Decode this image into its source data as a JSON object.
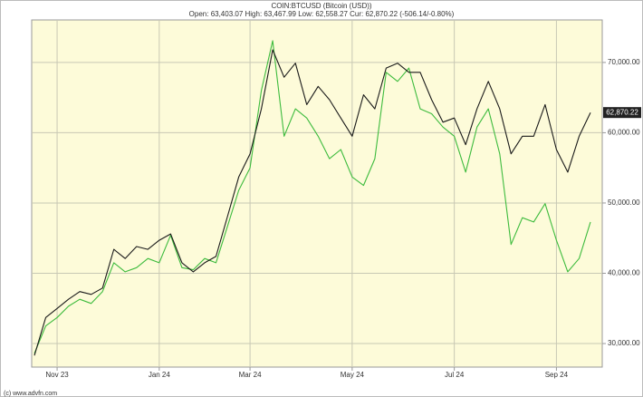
{
  "chart_data": {
    "type": "line",
    "title": "COIN:BTCUSD (Bitcoin (USD))",
    "subtitle": "Open: 63,403.07 High: 63,467.99 Low: 62,558.27 Cur: 62,870.22 (-506.14/-0.80%)",
    "footer": "(c) www.advfn.com",
    "categories": [
      null,
      null,
      "Nov 23",
      null,
      null,
      null,
      null,
      null,
      null,
      null,
      null,
      "Jan 24",
      null,
      null,
      null,
      null,
      null,
      null,
      null,
      "Mar 24",
      null,
      null,
      null,
      null,
      null,
      null,
      null,
      null,
      "May 24",
      null,
      null,
      null,
      null,
      null,
      null,
      null,
      null,
      "Jul 24",
      null,
      null,
      null,
      null,
      null,
      null,
      null,
      null,
      "Sep 24",
      null,
      null,
      null
    ],
    "series": [
      {
        "color": "#1a1a1a",
        "values": [
          28300,
          33700,
          35000,
          36300,
          37400,
          37000,
          37900,
          43400,
          42100,
          43800,
          43400,
          44700,
          45600,
          41500,
          40200,
          41500,
          42400,
          48000,
          53700,
          57000,
          63400,
          71800,
          67900,
          69900,
          64000,
          66600,
          64700,
          62100,
          59500,
          65400,
          63400,
          69200,
          69900,
          68600,
          68600,
          64700,
          61500,
          62100,
          58300,
          63400,
          67300,
          63400,
          57000,
          59500,
          59500,
          64000,
          57600,
          54400,
          59500,
          62870.22
        ]
      },
      {
        "color": "#3dbb3d",
        "values": [
          28600,
          32500,
          33700,
          35300,
          36300,
          35700,
          37400,
          41500,
          40200,
          40800,
          42100,
          41500,
          45400,
          40800,
          40500,
          42100,
          41500,
          46600,
          51800,
          55000,
          66000,
          73100,
          59500,
          63400,
          62100,
          59500,
          56300,
          57600,
          53700,
          52500,
          56300,
          68600,
          67300,
          69200,
          63400,
          62700,
          60800,
          59500,
          54400,
          60800,
          63400,
          57000,
          44100,
          47900,
          47300,
          49900,
          44700,
          40200,
          42100,
          47300
        ]
      }
    ],
    "last_value": {
      "value": 62870.22,
      "label": "62,870.22"
    },
    "ylim": [
      26650,
      76050
    ],
    "yticks": [
      {
        "value": 30000,
        "label": "30,000.00"
      },
      {
        "value": 40000,
        "label": "40,000.00"
      },
      {
        "value": 50000,
        "label": "50,000.00"
      },
      {
        "value": 60000,
        "label": "60,000.00"
      },
      {
        "value": 70000,
        "label": "70,000.00"
      }
    ],
    "grid": true
  }
}
